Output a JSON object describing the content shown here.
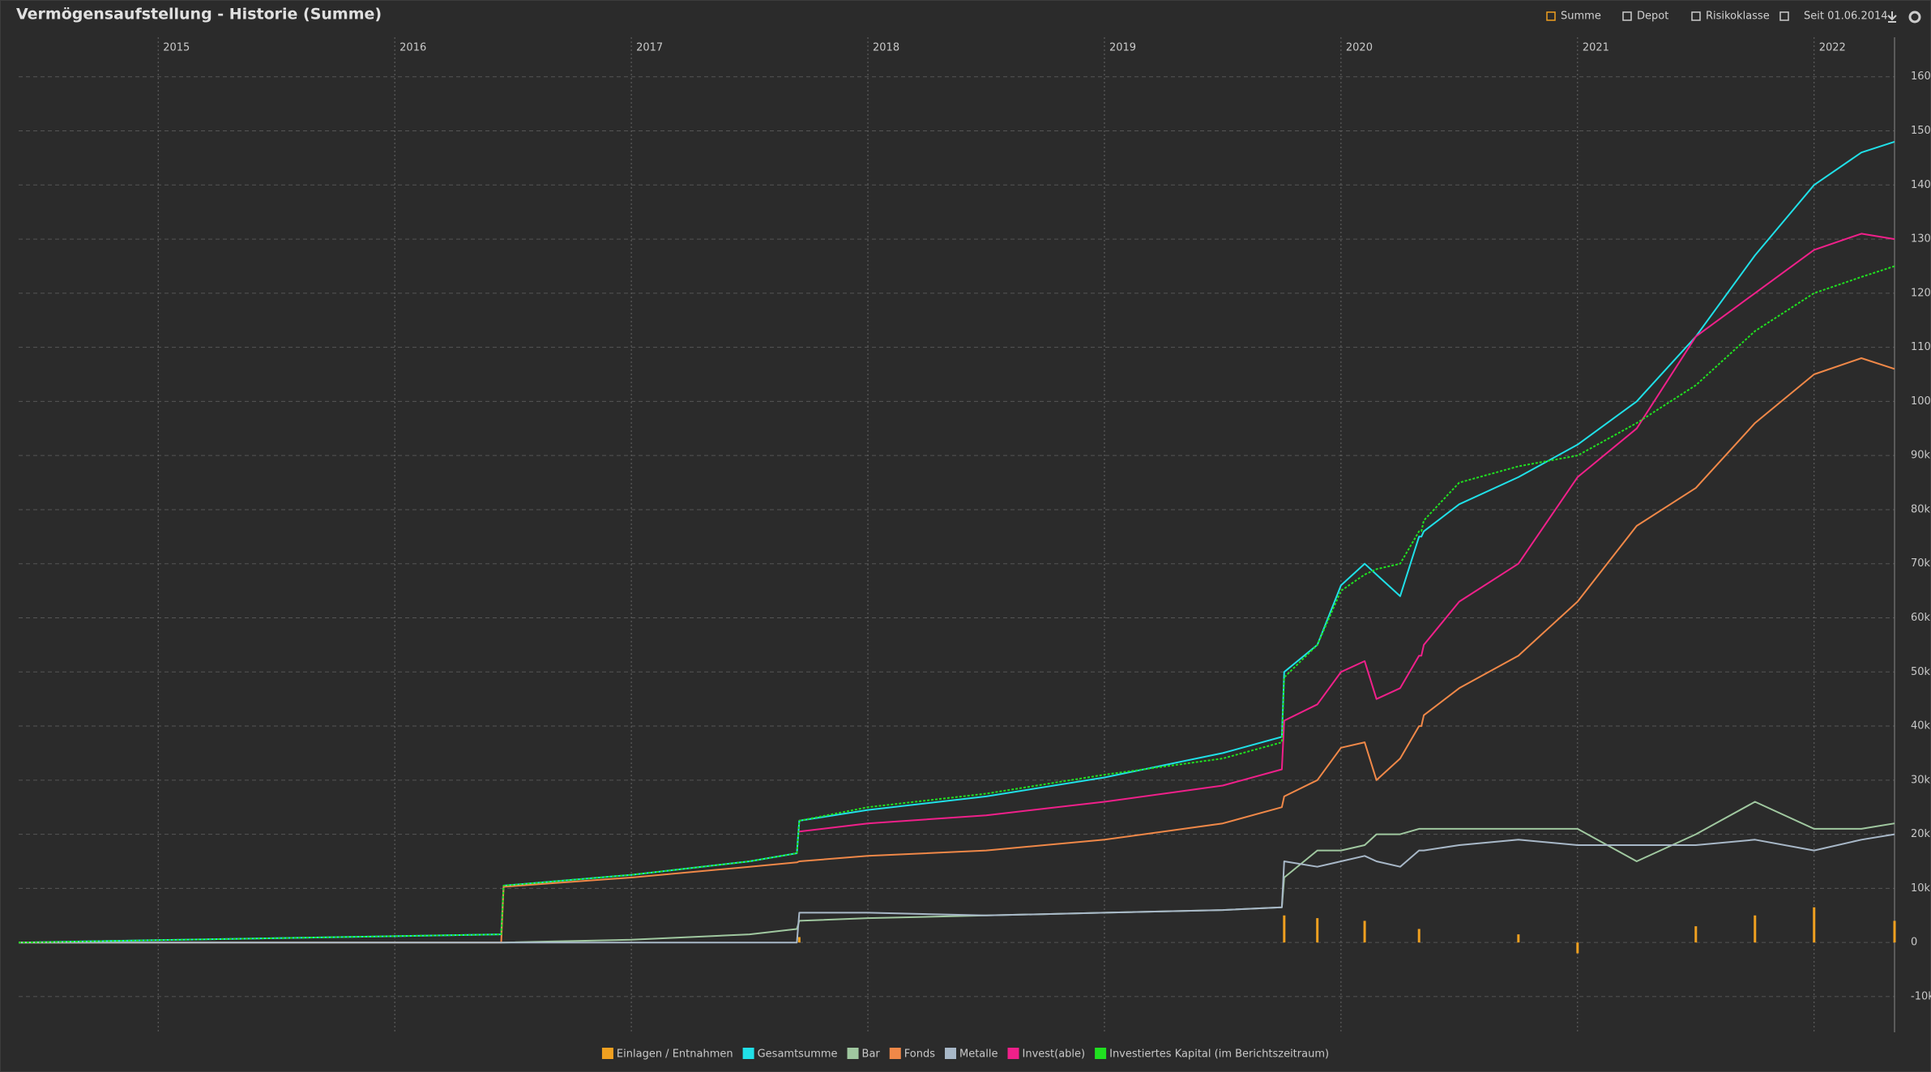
{
  "header": {
    "title": "Vermögensaufstellung - Historie (Summe)"
  },
  "toolbar": [
    "Summe",
    "Depot",
    "Risikoklasse",
    "Seit 01.06.2014"
  ],
  "chart_data": {
    "type": "line",
    "x": [
      2014.41,
      2016.45,
      2016.46,
      2017.0,
      2017.5,
      2017.7,
      2017.71,
      2018.0,
      2018.5,
      2019.0,
      2019.5,
      2019.75,
      2019.76,
      2019.9,
      2020.0,
      2020.1,
      2020.15,
      2020.25,
      2020.33,
      2020.34,
      2020.35,
      2020.5,
      2020.75,
      2021.0,
      2021.25,
      2021.5,
      2021.75,
      2022.0,
      2022.2,
      2022.34
    ],
    "xlim": [
      2014.41,
      2022.34
    ],
    "xticks": [
      2015,
      2016,
      2017,
      2018,
      2019,
      2020,
      2021,
      2022
    ],
    "ylim": [
      -16600,
      167300
    ],
    "yticks": [
      {
        "value": -10000,
        "label": "-10k"
      },
      0,
      {
        "value": 10000,
        "label": "10k"
      },
      {
        "value": 20000,
        "label": "20k"
      },
      {
        "value": 30000,
        "label": "30k"
      },
      {
        "value": 40000,
        "label": "40k"
      },
      {
        "value": 50000,
        "label": "50k"
      },
      {
        "value": 60000,
        "label": "60k"
      },
      {
        "value": 70000,
        "label": "70k"
      },
      {
        "value": 80000,
        "label": "80k"
      },
      {
        "value": 90000,
        "label": "90k"
      },
      {
        "value": 100000,
        "label": "100k"
      },
      {
        "value": 110000,
        "label": "110k"
      },
      {
        "value": 120000,
        "label": "120k"
      },
      {
        "value": 130000,
        "label": "130k"
      },
      {
        "value": 140000,
        "label": "140k"
      },
      {
        "value": 150000,
        "label": "150k"
      },
      {
        "value": 160000,
        "label": "160k"
      }
    ],
    "grid": true,
    "legend": "bottom",
    "series": [
      {
        "name": "Einlagen / Entnahmen",
        "type": "bar",
        "color": "#f0a020",
        "values": [
          0,
          0,
          0,
          0,
          0,
          0,
          1000,
          0,
          0,
          0,
          0,
          0,
          5000,
          4500,
          0,
          4000,
          0,
          0,
          2500,
          0,
          0,
          0,
          1500,
          -2000,
          0,
          3000,
          5000,
          6500,
          0,
          4000
        ]
      },
      {
        "name": "Gesamtsumme",
        "color": "#20e0e8",
        "values": [
          0,
          1500,
          10500,
          12500,
          15000,
          16500,
          22500,
          24500,
          27000,
          30500,
          35000,
          38000,
          50000,
          55000,
          66000,
          70000,
          68000,
          64000,
          75000,
          75000,
          76000,
          81000,
          86000,
          92000,
          100000,
          112000,
          127000,
          140000,
          146000,
          148000
        ]
      },
      {
        "name": "Bar",
        "color": "#a0c8a0",
        "values": [
          0,
          0,
          0,
          500,
          1500,
          2500,
          4000,
          4500,
          5000,
          5500,
          6000,
          6500,
          12000,
          17000,
          17000,
          18000,
          20000,
          20000,
          21000,
          21000,
          21000,
          21000,
          21000,
          21000,
          15000,
          20000,
          26000,
          21000,
          21000,
          22000
        ]
      },
      {
        "name": "Fonds",
        "color": "#f08848",
        "values": [
          0,
          0,
          10300,
          12000,
          14000,
          14800,
          15000,
          16000,
          17000,
          19000,
          22000,
          25000,
          27000,
          30000,
          36000,
          37000,
          30000,
          34000,
          40000,
          40000,
          42000,
          47000,
          53000,
          63000,
          77000,
          84000,
          96000,
          105000,
          108000,
          106000
        ]
      },
      {
        "name": "Metalle",
        "color": "#a8b8c8",
        "values": [
          0,
          0,
          0,
          0,
          0,
          0,
          5500,
          5500,
          5000,
          5500,
          6000,
          6500,
          15000,
          14000,
          15000,
          16000,
          15000,
          14000,
          17000,
          17000,
          17000,
          18000,
          19000,
          18000,
          18000,
          18000,
          19000,
          17000,
          19000,
          20000
        ]
      },
      {
        "name": "Invest(able)",
        "color": "#f0208a",
        "values": [
          null,
          null,
          null,
          null,
          null,
          null,
          20500,
          22000,
          23500,
          26000,
          29000,
          32000,
          41000,
          44000,
          50000,
          52000,
          45000,
          47000,
          53000,
          53000,
          55000,
          63000,
          70000,
          86000,
          95000,
          112000,
          120000,
          128000,
          131000,
          130000
        ]
      },
      {
        "name": "Investiertes Kapital (im Berichtszeitraum)",
        "color": "#20e020",
        "dashed": true,
        "values": [
          0,
          1500,
          10500,
          12500,
          15000,
          16500,
          22500,
          25000,
          27500,
          31000,
          34000,
          37000,
          49000,
          55000,
          65000,
          68000,
          69000,
          70000,
          76000,
          76000,
          78000,
          85000,
          88000,
          90000,
          96000,
          103000,
          113000,
          120000,
          123000,
          125000
        ]
      }
    ]
  }
}
